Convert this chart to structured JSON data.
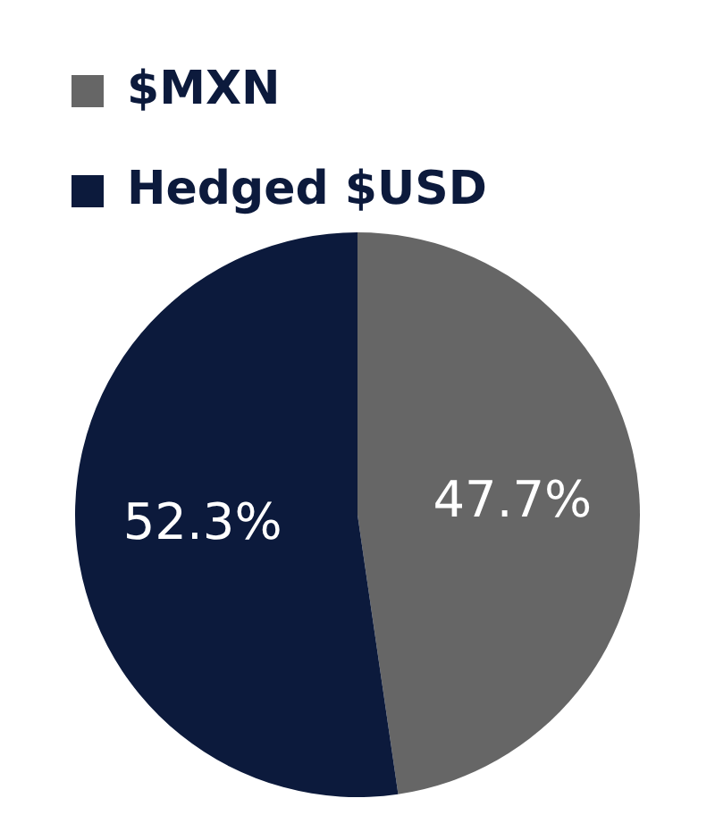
{
  "chart_data": {
    "type": "pie",
    "categories": [
      "$MXN",
      "Hedged $USD"
    ],
    "values": [
      47.7,
      52.3
    ],
    "colors": [
      "#666666",
      "#0c1a3c"
    ],
    "value_labels": [
      "47.7%",
      "52.3%"
    ],
    "legend": "top left"
  }
}
